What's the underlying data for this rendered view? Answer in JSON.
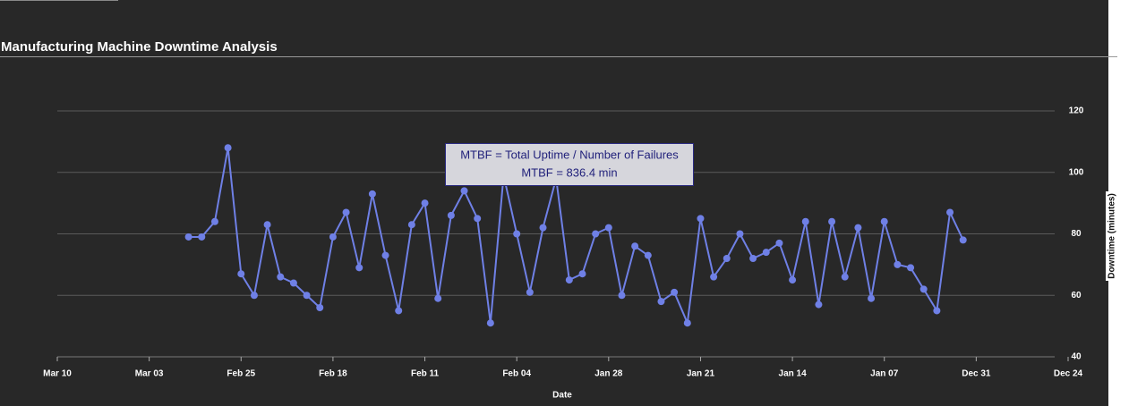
{
  "chart_data": {
    "type": "line",
    "title": "Manufacturing Machine Downtime Analysis",
    "xlabel": "Date",
    "ylabel": "Downtime (minutes)",
    "annotations": [
      "MTBF = Total Uptime / Number of Failures",
      "MTBF = 836.4 min"
    ],
    "color": "#6f80e6",
    "grid": true,
    "x": [
      "Jan 01",
      "Jan 02",
      "Jan 03",
      "Jan 04",
      "Jan 05",
      "Jan 06",
      "Jan 07",
      "Jan 08",
      "Jan 09",
      "Jan 10",
      "Jan 11",
      "Jan 12",
      "Jan 13",
      "Jan 14",
      "Jan 15",
      "Jan 16",
      "Jan 17",
      "Jan 18",
      "Jan 19",
      "Jan 20",
      "Jan 21",
      "Jan 22",
      "Jan 23",
      "Jan 24",
      "Jan 25",
      "Jan 26",
      "Jan 27",
      "Jan 28",
      "Jan 29",
      "Jan 30",
      "Jan 31",
      "Feb 01",
      "Feb 02",
      "Feb 03",
      "Feb 04",
      "Feb 05",
      "Feb 06",
      "Feb 07",
      "Feb 08",
      "Feb 09",
      "Feb 10",
      "Feb 11",
      "Feb 12",
      "Feb 13",
      "Feb 14",
      "Feb 15",
      "Feb 16",
      "Feb 17",
      "Feb 18",
      "Feb 19",
      "Feb 20",
      "Feb 21",
      "Feb 22",
      "Feb 23",
      "Feb 24",
      "Feb 25",
      "Feb 26",
      "Feb 27",
      "Feb 28",
      "Feb 29"
    ],
    "values": [
      78,
      87,
      55,
      62,
      69,
      70,
      84,
      59,
      82,
      66,
      84,
      57,
      84,
      65,
      77,
      74,
      72,
      80,
      72,
      66,
      85,
      51,
      61,
      58,
      73,
      76,
      60,
      82,
      80,
      67,
      65,
      98,
      82,
      61,
      80,
      99,
      51,
      85,
      94,
      86,
      59,
      90,
      83,
      55,
      73,
      93,
      69,
      87,
      79,
      56,
      60,
      64,
      66,
      83,
      60,
      67,
      108,
      84,
      79,
      79
    ],
    "xlim": [
      "Mar 10",
      "Dec 24"
    ],
    "xticks": [
      "Mar 10",
      "Mar 03",
      "Feb 25",
      "Feb 18",
      "Feb 11",
      "Feb 04",
      "Jan 28",
      "Jan 21",
      "Jan 14",
      "Jan 07",
      "Dec 31",
      "Dec 24"
    ],
    "ylim": [
      40,
      120
    ],
    "yticks": [
      40,
      60,
      80,
      100,
      120
    ]
  }
}
